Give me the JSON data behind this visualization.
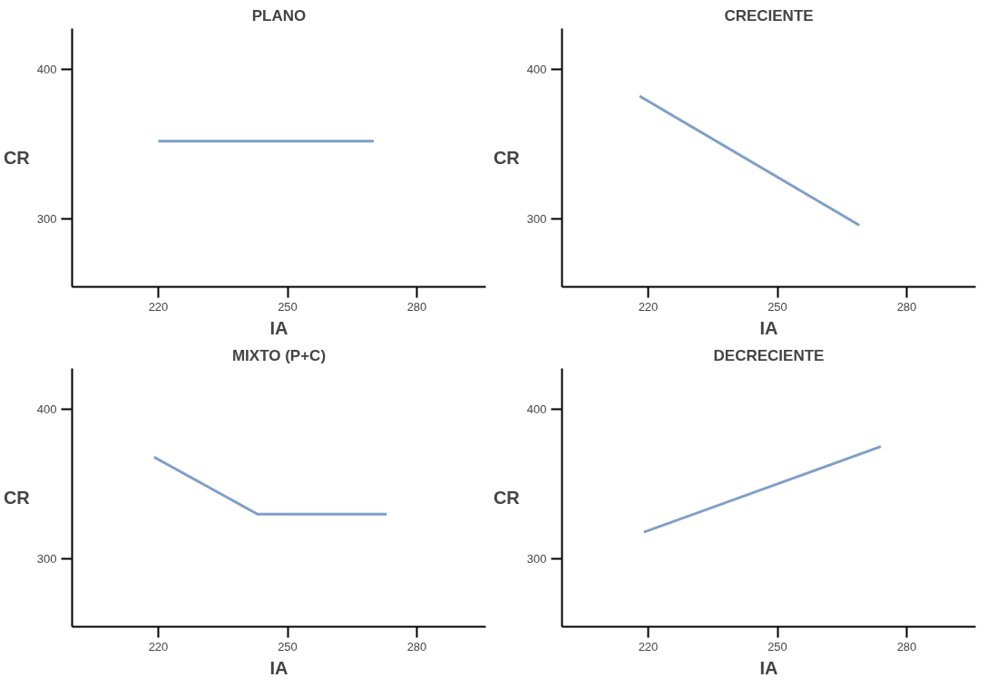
{
  "chart_data": [
    {
      "type": "line",
      "title": "PLANO",
      "xlabel": "IA",
      "ylabel": "CR",
      "xlim": [
        200,
        296
      ],
      "ylim": [
        255,
        427
      ],
      "xticks": [
        220,
        250,
        280
      ],
      "yticks": [
        300,
        400
      ],
      "series": [
        {
          "color": "#7f9fc8",
          "x": [
            220,
            270
          ],
          "values": [
            352,
            352
          ]
        }
      ]
    },
    {
      "type": "line",
      "title": "CRECIENTE",
      "xlabel": "IA",
      "ylabel": "CR",
      "xlim": [
        200,
        296
      ],
      "ylim": [
        255,
        427
      ],
      "xticks": [
        220,
        250,
        280
      ],
      "yticks": [
        300,
        400
      ],
      "series": [
        {
          "color": "#7f9fc8",
          "x": [
            218,
            269
          ],
          "values": [
            382,
            296
          ]
        }
      ]
    },
    {
      "type": "line",
      "title": "MIXTO (P+C)",
      "xlabel": "IA",
      "ylabel": "CR",
      "xlim": [
        200,
        296
      ],
      "ylim": [
        255,
        427
      ],
      "xticks": [
        220,
        250,
        280
      ],
      "yticks": [
        300,
        400
      ],
      "series": [
        {
          "color": "#7f9fc8",
          "x": [
            219,
            243,
            273
          ],
          "values": [
            368,
            330,
            330
          ]
        }
      ]
    },
    {
      "type": "line",
      "title": "DECRECIENTE",
      "xlabel": "IA",
      "ylabel": "CR",
      "xlim": [
        200,
        296
      ],
      "ylim": [
        255,
        427
      ],
      "xticks": [
        220,
        250,
        280
      ],
      "yticks": [
        300,
        400
      ],
      "series": [
        {
          "color": "#7f9fc8",
          "x": [
            219,
            274
          ],
          "values": [
            318,
            375
          ]
        }
      ]
    }
  ]
}
